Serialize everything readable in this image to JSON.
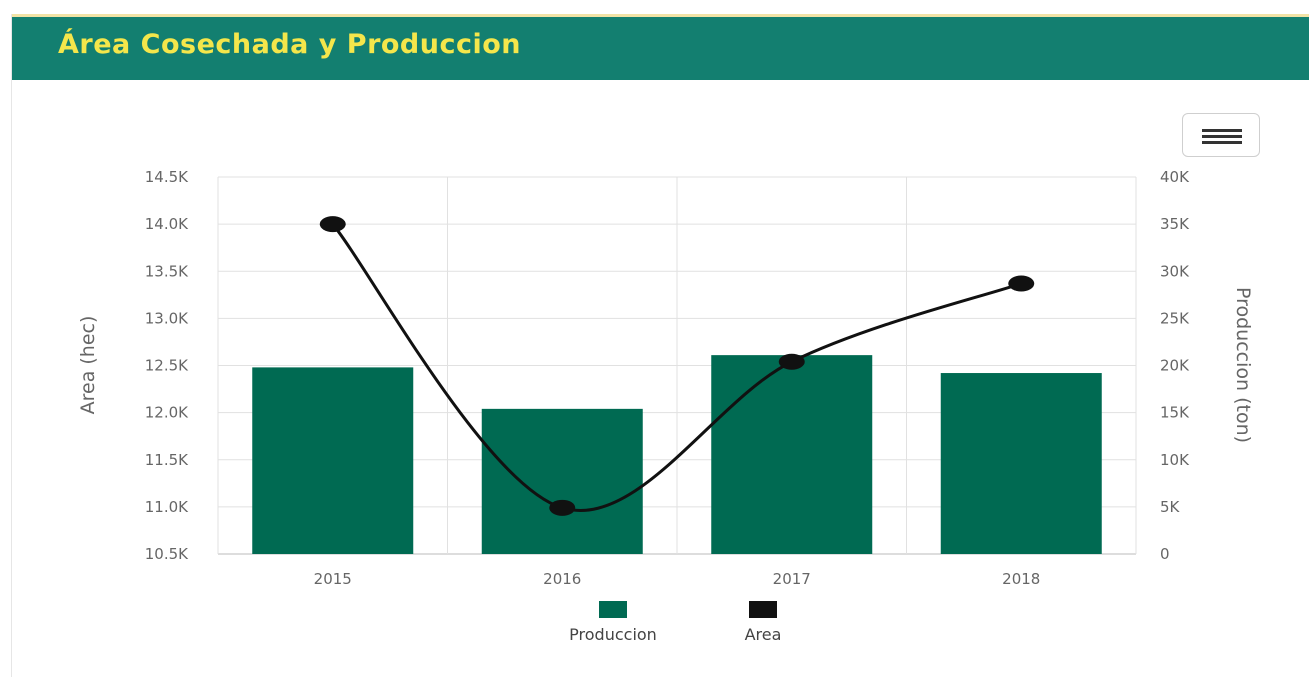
{
  "header": {
    "title": "Área Cosechada y Produccion"
  },
  "menu": {
    "icon": "hamburger-menu-icon"
  },
  "colors": {
    "header_bg": "#137f70",
    "header_title": "#f4e64b",
    "bar": "#006a52",
    "line": "#111111"
  },
  "chart_data": {
    "type": "bar",
    "title": "Área Cosechada y Produccion",
    "categories": [
      "2015",
      "2016",
      "2017",
      "2018"
    ],
    "series": [
      {
        "name": "Produccion",
        "type": "bar",
        "axis": "right",
        "values": [
          19800,
          15400,
          21100,
          19200
        ]
      },
      {
        "name": "Area",
        "type": "line",
        "axis": "left",
        "values": [
          14000,
          10990,
          12540,
          13370
        ]
      }
    ],
    "y_left": {
      "label": "Area (hec)",
      "ylim": [
        10500,
        14500
      ],
      "ticks": [
        "10.5K",
        "11.0K",
        "11.5K",
        "12.0K",
        "12.5K",
        "13.0K",
        "13.5K",
        "14.0K",
        "14.5K"
      ]
    },
    "y_right": {
      "label": "Produccion (ton)",
      "ylim": [
        0,
        40000
      ],
      "ticks": [
        "0",
        "5K",
        "10K",
        "15K",
        "20K",
        "25K",
        "30K",
        "35K",
        "40K"
      ]
    },
    "grid": true,
    "legend": [
      "Produccion",
      "Area"
    ],
    "legend_position": "bottom-center"
  }
}
